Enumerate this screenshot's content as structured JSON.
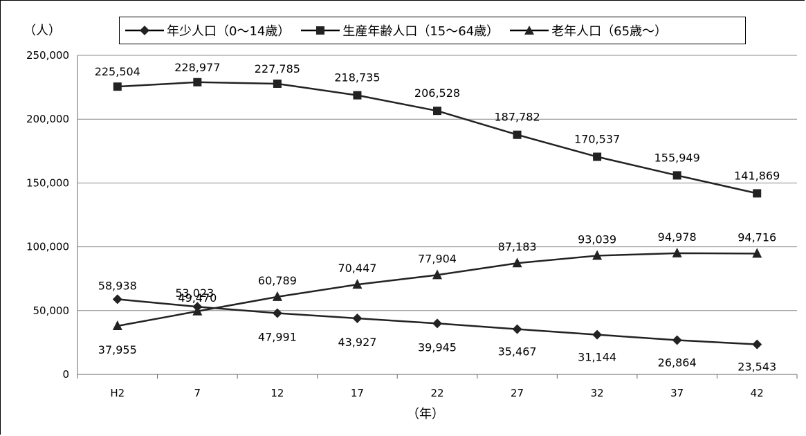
{
  "chart_data": {
    "type": "line",
    "title": "",
    "ylabel": "（人）",
    "xlabel": "（年）",
    "categories": [
      "H2",
      "7",
      "12",
      "17",
      "22",
      "27",
      "32",
      "37",
      "42"
    ],
    "ylim": [
      0,
      250000
    ],
    "yticks": [
      0,
      50000,
      100000,
      150000,
      200000,
      250000
    ],
    "ytick_labels": [
      "0",
      "50,000",
      "100,000",
      "150,000",
      "200,000",
      "250,000"
    ],
    "grid": true,
    "legend_position": "top",
    "series": [
      {
        "name": "年少人口（0～14歳）",
        "marker": "diamond",
        "values": [
          58938,
          53023,
          47991,
          43927,
          39945,
          35467,
          31144,
          26864,
          23543
        ],
        "labels": [
          "58,938",
          "53,023",
          "47,991",
          "43,927",
          "39,945",
          "35,467",
          "31,144",
          "26,864",
          "23,543"
        ]
      },
      {
        "name": "生産年齢人口（15～64歳）",
        "marker": "square",
        "values": [
          225504,
          228977,
          227785,
          218735,
          206528,
          187782,
          170537,
          155949,
          141869
        ],
        "labels": [
          "225,504",
          "228,977",
          "227,785",
          "218,735",
          "206,528",
          "187,782",
          "170,537",
          "155,949",
          "141,869"
        ]
      },
      {
        "name": "老年人口（65歳～）",
        "marker": "triangle",
        "values": [
          37955,
          49470,
          60789,
          70447,
          77904,
          87183,
          93039,
          94978,
          94716
        ],
        "labels": [
          "37,955",
          "49,470",
          "60,789",
          "70,447",
          "77,904",
          "87,183",
          "93,039",
          "94,978",
          "94,716"
        ]
      }
    ]
  }
}
